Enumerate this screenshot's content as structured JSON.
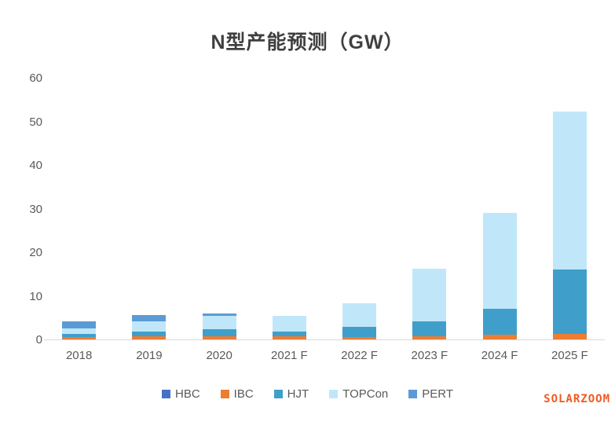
{
  "page": {
    "watermark": "SOLARZOOM"
  },
  "colors": {
    "title_text": "#3f3f3f",
    "axis_text": "#595959",
    "axis_line": "#d9d9d9",
    "watermark": "#f15a22"
  },
  "chart_data": {
    "type": "bar",
    "stacked": true,
    "title": "N型产能预测（GW）",
    "xlabel": "",
    "ylabel": "",
    "ylim": [
      0,
      60
    ],
    "yticks": [
      0,
      10,
      20,
      30,
      40,
      50,
      60
    ],
    "grid": false,
    "legend_position": "bottom",
    "categories": [
      "2018",
      "2019",
      "2020",
      "2021 F",
      "2022 F",
      "2023 F",
      "2024 F",
      "2025 F"
    ],
    "series": [
      {
        "name": "HBC",
        "color": "#4472c4",
        "values": [
          0,
          0,
          0,
          0,
          0,
          0,
          0,
          0
        ]
      },
      {
        "name": "IBC",
        "color": "#ed7d31",
        "values": [
          0.5,
          0.7,
          0.7,
          0.7,
          0.5,
          0.8,
          1.0,
          1.3
        ]
      },
      {
        "name": "HJT",
        "color": "#3f9fca",
        "values": [
          0.8,
          1.1,
          1.7,
          1.1,
          2.3,
          3.4,
          6.1,
          14.7
        ]
      },
      {
        "name": "TOPCon",
        "color": "#c0e7f9",
        "values": [
          1.3,
          2.3,
          3.0,
          3.7,
          5.5,
          12.1,
          22.0,
          36.3
        ]
      },
      {
        "name": "PERT",
        "color": "#5b9bd5",
        "values": [
          1.5,
          1.5,
          0.6,
          0,
          0,
          0,
          0,
          0
        ]
      }
    ],
    "totals": [
      4.1,
      5.6,
      6.0,
      5.5,
      8.3,
      16.3,
      29.1,
      52.3
    ]
  }
}
